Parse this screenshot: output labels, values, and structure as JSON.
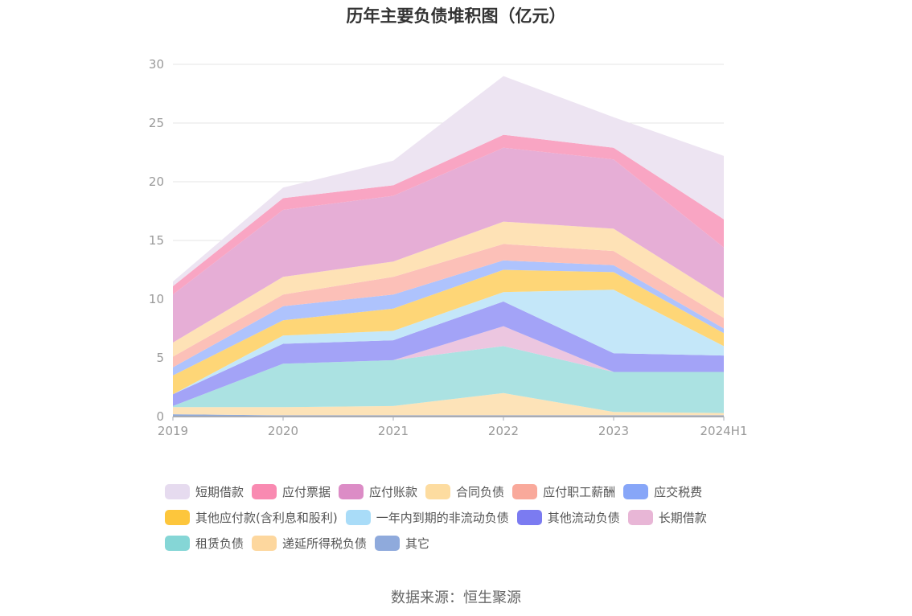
{
  "chart_data": {
    "type": "area",
    "stacked": true,
    "title": "历年主要负债堆积图（亿元）",
    "categories": [
      "2019",
      "2020",
      "2021",
      "2022",
      "2023",
      "2024H1"
    ],
    "ylim": [
      0,
      30
    ],
    "yticks": [
      0,
      5,
      10,
      15,
      20,
      25,
      30
    ],
    "grid": true,
    "legend_position": "bottom",
    "series": [
      {
        "name": "其它",
        "color": "#8faadc",
        "values": [
          0.2,
          0.1,
          0.1,
          0.1,
          0.1,
          0.1
        ]
      },
      {
        "name": "递延所得税负债",
        "color": "#fde3b8",
        "values": [
          0.6,
          0.7,
          0.8,
          1.9,
          0.3,
          0.2
        ]
      },
      {
        "name": "租赁负债",
        "color": "#abe2e2",
        "values": [
          0.1,
          3.7,
          3.9,
          4.0,
          3.4,
          3.5
        ]
      },
      {
        "name": "长期借款",
        "color": "#ecc6e0",
        "values": [
          0.0,
          0.0,
          0.0,
          1.7,
          0.0,
          0.0
        ]
      },
      {
        "name": "其他流动负债",
        "color": "#a3a3f7",
        "values": [
          1.0,
          1.7,
          1.7,
          2.1,
          1.6,
          1.4
        ]
      },
      {
        "name": "一年内到期的非流动负债",
        "color": "#c4e7f9",
        "values": [
          0.0,
          0.7,
          0.8,
          0.8,
          5.4,
          0.8
        ]
      },
      {
        "name": "其他应付款(含利息和股利)",
        "color": "#fed677",
        "values": [
          1.6,
          1.3,
          1.9,
          1.9,
          1.5,
          1.1
        ]
      },
      {
        "name": "应交税费",
        "color": "#aec3fd",
        "values": [
          0.7,
          1.2,
          1.2,
          0.8,
          0.6,
          0.4
        ]
      },
      {
        "name": "应付职工薪酬",
        "color": "#fcc0b8",
        "values": [
          0.9,
          1.0,
          1.5,
          1.4,
          1.2,
          0.9
        ]
      },
      {
        "name": "合同负债",
        "color": "#fee2b6",
        "values": [
          1.2,
          1.5,
          1.3,
          1.9,
          1.9,
          1.7
        ]
      },
      {
        "name": "应付账款",
        "color": "#e6aed6",
        "values": [
          4.1,
          5.7,
          5.6,
          6.3,
          5.9,
          4.3
        ]
      },
      {
        "name": "应付票据",
        "color": "#f9a5c3",
        "values": [
          0.7,
          1.0,
          0.9,
          1.1,
          1.0,
          2.4
        ]
      },
      {
        "name": "短期借款",
        "color": "#ede4f2",
        "values": [
          0.4,
          0.9,
          2.1,
          5.0,
          2.6,
          5.4
        ]
      }
    ]
  },
  "legend_order": [
    "短期借款",
    "应付票据",
    "应付账款",
    "合同负债",
    "应付职工薪酬",
    "应交税费",
    "其他应付款(含利息和股利)",
    "一年内到期的非流动负债",
    "其他流动负债",
    "长期借款",
    "租赁负债",
    "递延所得税负债",
    "其它"
  ],
  "legend_colors": {
    "短期借款": "#e6dbef",
    "应付票据": "#f98ab1",
    "应付账款": "#dc8cc6",
    "合同负债": "#fddca0",
    "应付职工薪酬": "#f9a99b",
    "应交税费": "#87a6f8",
    "其他应付款(含利息和股利)": "#fdc63c",
    "一年内到期的非流动负债": "#a9dcf8",
    "其他流动负债": "#7b7bf1",
    "长期借款": "#e8b6d6",
    "租赁负债": "#85d6d6",
    "递延所得税负债": "#fdd79e",
    "其它": "#8faadc"
  },
  "source_note": "数据来源：恒生聚源"
}
